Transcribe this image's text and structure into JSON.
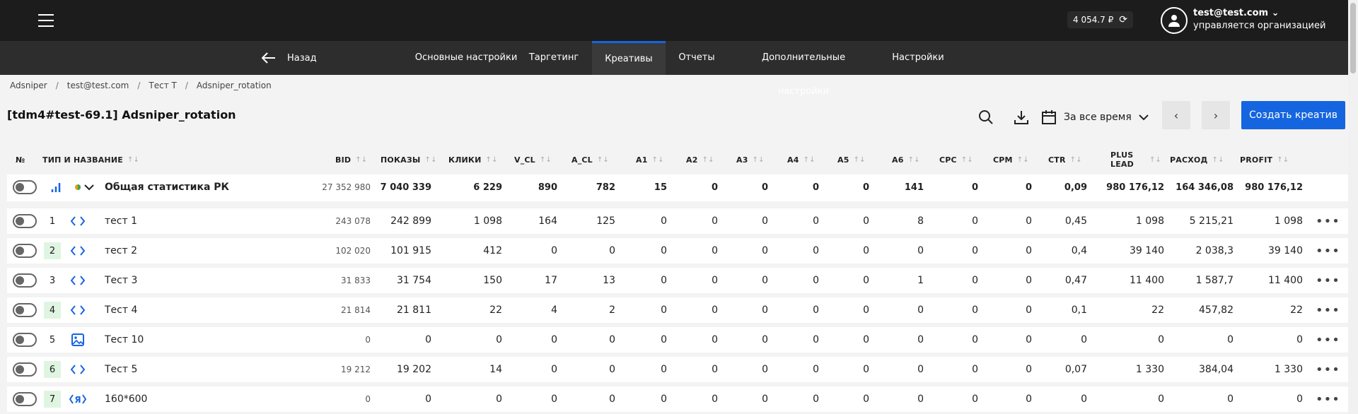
{
  "header": {
    "balance": "4 054.7 ₽",
    "user_email": "test@test.com",
    "user_org": "управляется организацией"
  },
  "nav": {
    "back": "Назад",
    "tabs": [
      "Основные настройки",
      "Таргетинг",
      "Креативы",
      "Отчеты",
      "Дополнительные настройки",
      "Настройки"
    ],
    "active": "Креативы"
  },
  "breadcrumb": [
    "Adsniper",
    "test@test.com",
    "Тест Т",
    "Adsniper_rotation"
  ],
  "title": "[tdm4#test-69.1] Adsniper_rotation",
  "toolbar": {
    "period": "За все время",
    "create": "Создать креатив"
  },
  "columns": {
    "no": "№",
    "name": "ТИП И НАЗВАНИЕ",
    "bid": "BID",
    "shows": "ПОКАЗЫ",
    "clicks": "КЛИКИ",
    "v_cl": "V_CL",
    "a_cl": "A_CL",
    "a1": "A1",
    "a2": "A2",
    "a3": "A3",
    "a4": "A4",
    "a5": "A5",
    "a6": "A6",
    "cpc": "CPC",
    "cpm": "CPM",
    "ctr": "CTR",
    "plus_lead_1": "PLUS",
    "plus_lead_2": "LEAD",
    "expense": "РАСХОД",
    "profit": "PROFIT"
  },
  "summary": {
    "name": "Общая статистика РК",
    "bid": "27 352 980",
    "shows": "7 040 339",
    "clicks": "6 229",
    "v_cl": "890",
    "a_cl": "782",
    "a1": "15",
    "a2": "0",
    "a3": "0",
    "a4": "0",
    "a5": "0",
    "a6": "141",
    "cpc": "0",
    "cpm": "0",
    "ctr": "0,09",
    "plus_lead": "980 176,12",
    "expense": "164 346,08",
    "profit": "980 176,12"
  },
  "rows": [
    {
      "idx": "1",
      "highlight": false,
      "icon": "code-icon",
      "name": "тест 1",
      "bid": "243 078",
      "shows": "242 899",
      "clicks": "1 098",
      "v_cl": "164",
      "a_cl": "125",
      "a1": "0",
      "a2": "0",
      "a3": "0",
      "a4": "0",
      "a5": "0",
      "a6": "8",
      "cpc": "0",
      "cpm": "0",
      "ctr": "0,45",
      "plus_lead": "1 098",
      "expense": "5 215,21",
      "profit": "1 098"
    },
    {
      "idx": "2",
      "highlight": true,
      "icon": "code-icon",
      "name": "тест 2",
      "bid": "102 020",
      "shows": "101 915",
      "clicks": "412",
      "v_cl": "0",
      "a_cl": "0",
      "a1": "0",
      "a2": "0",
      "a3": "0",
      "a4": "0",
      "a5": "0",
      "a6": "0",
      "cpc": "0",
      "cpm": "0",
      "ctr": "0,4",
      "plus_lead": "39 140",
      "expense": "2 038,3",
      "profit": "39 140"
    },
    {
      "idx": "3",
      "highlight": false,
      "icon": "code-icon",
      "name": "Тест 3",
      "bid": "31 833",
      "shows": "31 754",
      "clicks": "150",
      "v_cl": "17",
      "a_cl": "13",
      "a1": "0",
      "a2": "0",
      "a3": "0",
      "a4": "0",
      "a5": "0",
      "a6": "1",
      "cpc": "0",
      "cpm": "0",
      "ctr": "0,47",
      "plus_lead": "11 400",
      "expense": "1 587,7",
      "profit": "11 400"
    },
    {
      "idx": "4",
      "highlight": true,
      "icon": "code-icon",
      "name": "Тест 4",
      "bid": "21 814",
      "shows": "21 811",
      "clicks": "22",
      "v_cl": "4",
      "a_cl": "2",
      "a1": "0",
      "a2": "0",
      "a3": "0",
      "a4": "0",
      "a5": "0",
      "a6": "0",
      "cpc": "0",
      "cpm": "0",
      "ctr": "0,1",
      "plus_lead": "22",
      "expense": "457,82",
      "profit": "22"
    },
    {
      "idx": "5",
      "highlight": false,
      "icon": "image-icon",
      "name": "Тест 10",
      "bid": "0",
      "shows": "0",
      "clicks": "0",
      "v_cl": "0",
      "a_cl": "0",
      "a1": "0",
      "a2": "0",
      "a3": "0",
      "a4": "0",
      "a5": "0",
      "a6": "0",
      "cpc": "0",
      "cpm": "0",
      "ctr": "0",
      "plus_lead": "0",
      "expense": "0",
      "profit": "0"
    },
    {
      "idx": "6",
      "highlight": true,
      "icon": "code-icon",
      "name": "Тест 5",
      "bid": "19 212",
      "shows": "19 202",
      "clicks": "14",
      "v_cl": "0",
      "a_cl": "0",
      "a1": "0",
      "a2": "0",
      "a3": "0",
      "a4": "0",
      "a5": "0",
      "a6": "0",
      "cpc": "0",
      "cpm": "0",
      "ctr": "0,07",
      "plus_lead": "1 330",
      "expense": "384,04",
      "profit": "1 330"
    },
    {
      "idx": "7",
      "highlight": true,
      "icon": "yandex-code-icon",
      "name": "160*600",
      "bid": "0",
      "shows": "0",
      "clicks": "0",
      "v_cl": "0",
      "a_cl": "0",
      "a1": "0",
      "a2": "0",
      "a3": "0",
      "a4": "0",
      "a5": "0",
      "a6": "0",
      "cpc": "0",
      "cpm": "0",
      "ctr": "0",
      "plus_lead": "0",
      "expense": "0",
      "profit": "0"
    }
  ]
}
